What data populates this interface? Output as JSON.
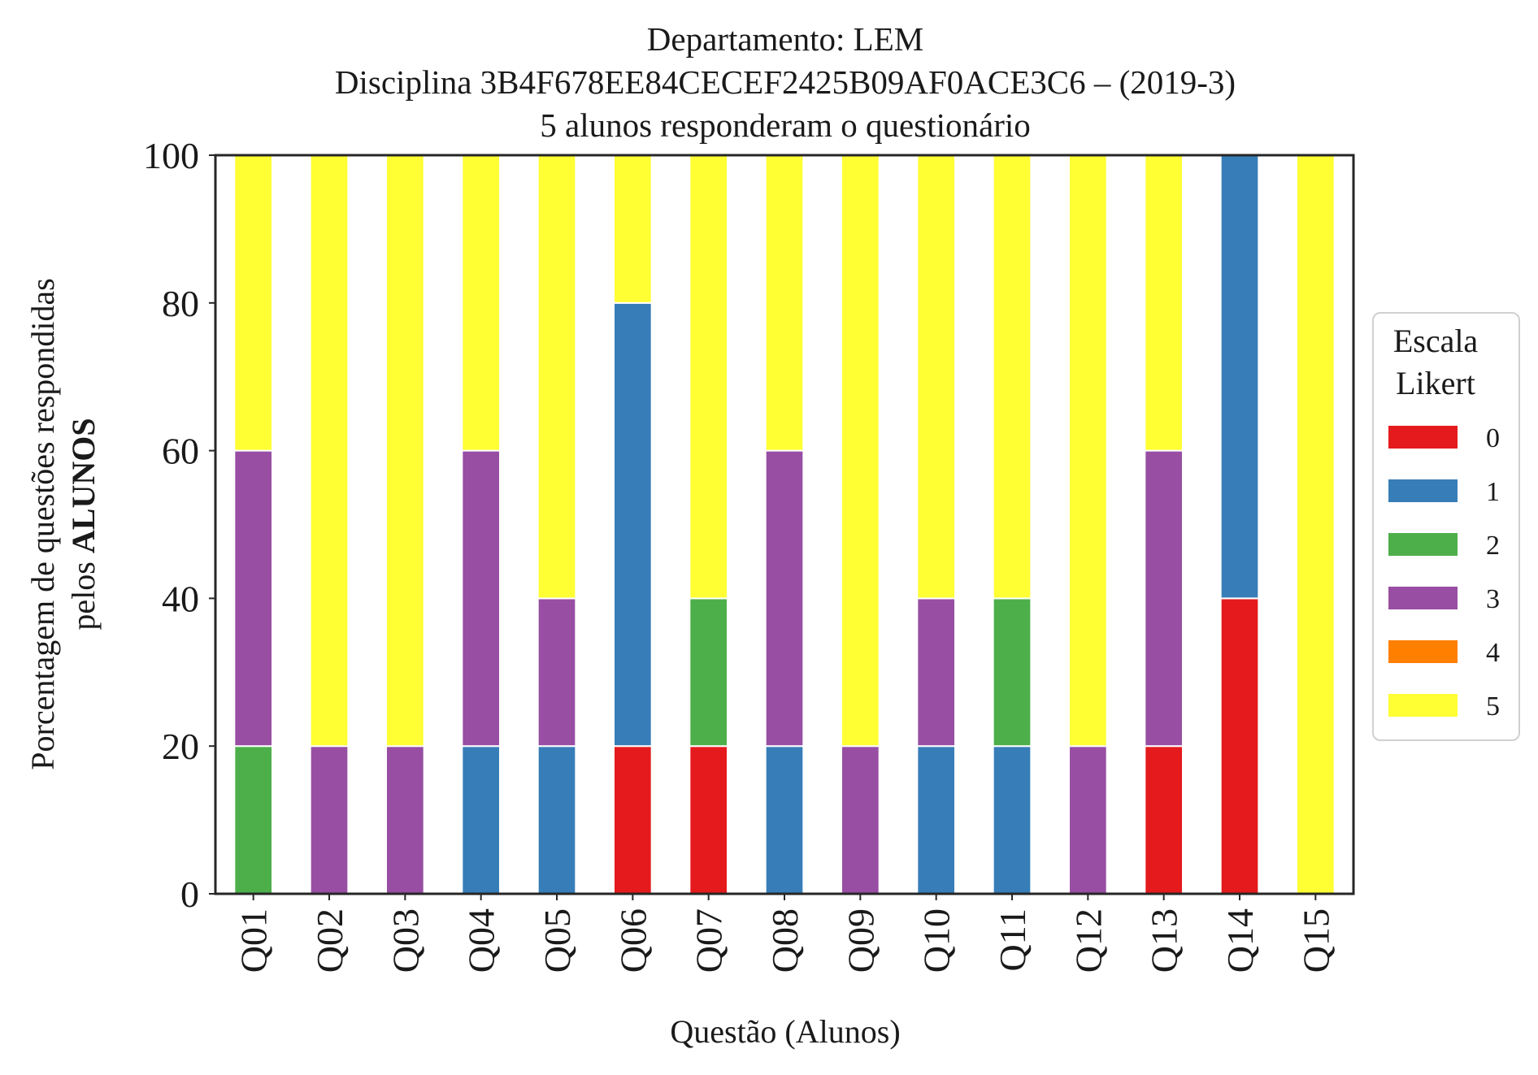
{
  "chart_data": {
    "type": "bar",
    "stacked": true,
    "title_lines": [
      "Departamento: LEM",
      "Disciplina 3B4F678EE84CECEF2425B09AF0ACE3C6 – (2019-3)",
      "5 alunos responderam o questionário"
    ],
    "xlabel": "Questão (Alunos)",
    "ylabel_line1": "Porcentagem de questões respondidas",
    "ylabel_line2_prefix": "pelos ",
    "ylabel_line2_bold": "ALUNOS",
    "ylim": [
      0,
      100
    ],
    "yticks": [
      "0",
      "20",
      "40",
      "60",
      "80",
      "100"
    ],
    "grid": false,
    "legend": {
      "title_lines": [
        "Escala",
        "Likert"
      ],
      "placement": "right-center"
    },
    "categories": [
      "Q01",
      "Q02",
      "Q03",
      "Q04",
      "Q05",
      "Q06",
      "Q07",
      "Q08",
      "Q09",
      "Q10",
      "Q11",
      "Q12",
      "Q13",
      "Q14",
      "Q15"
    ],
    "series": [
      {
        "name": "0",
        "color": "#e41a1c",
        "values": [
          0,
          0,
          0,
          0,
          0,
          20,
          20,
          0,
          0,
          0,
          0,
          0,
          20,
          40,
          0
        ]
      },
      {
        "name": "1",
        "color": "#377eb8",
        "values": [
          0,
          0,
          0,
          20,
          20,
          60,
          0,
          20,
          0,
          20,
          20,
          0,
          0,
          60,
          0
        ]
      },
      {
        "name": "2",
        "color": "#4daf4a",
        "values": [
          20,
          0,
          0,
          0,
          0,
          0,
          20,
          0,
          0,
          0,
          20,
          0,
          0,
          0,
          0
        ]
      },
      {
        "name": "3",
        "color": "#984ea3",
        "values": [
          40,
          20,
          20,
          40,
          20,
          0,
          0,
          40,
          20,
          20,
          0,
          20,
          40,
          0,
          0
        ]
      },
      {
        "name": "4",
        "color": "#ff7f00",
        "values": [
          0,
          0,
          0,
          0,
          0,
          0,
          0,
          0,
          0,
          0,
          0,
          0,
          0,
          0,
          0
        ]
      },
      {
        "name": "5",
        "color": "#ffff33",
        "values": [
          40,
          80,
          80,
          40,
          60,
          20,
          60,
          40,
          80,
          60,
          60,
          80,
          40,
          0,
          100
        ]
      }
    ]
  }
}
